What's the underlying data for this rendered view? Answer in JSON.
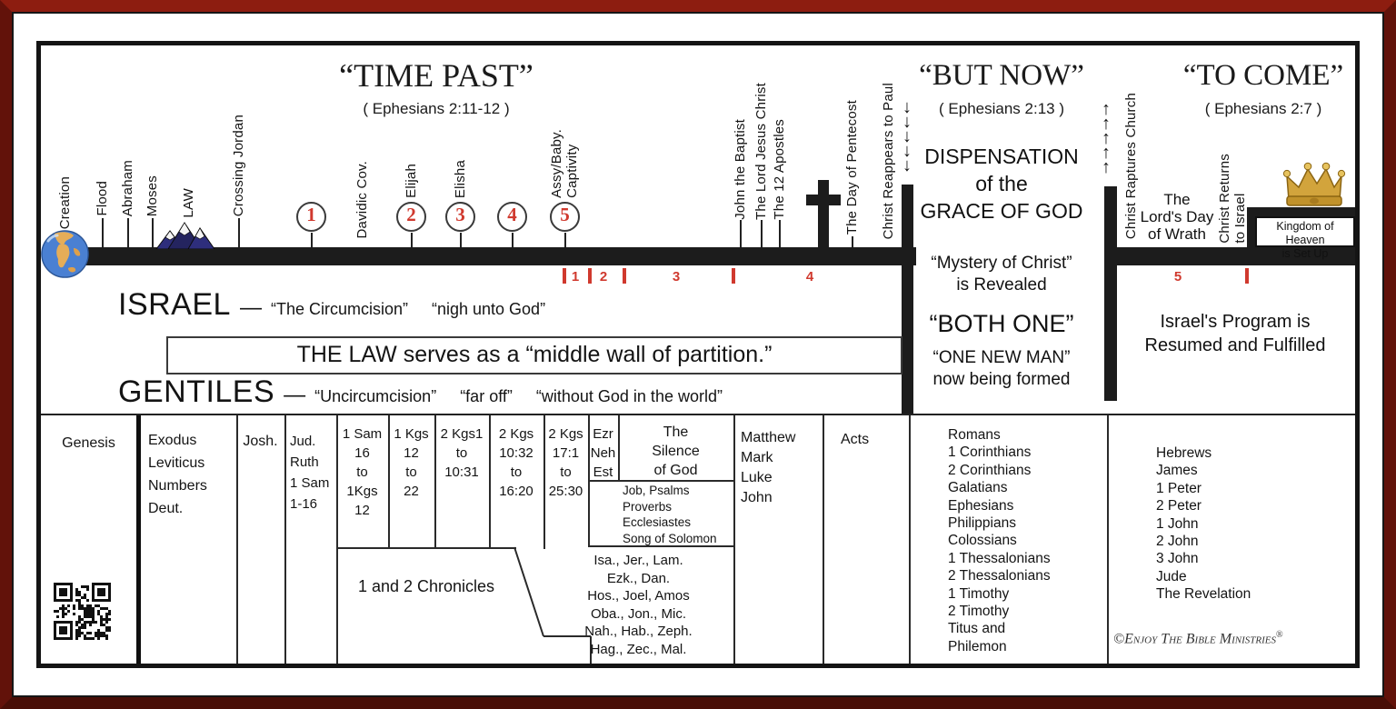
{
  "sections": {
    "time_past": {
      "title": "“TIME PAST”",
      "ref": "( Ephesians 2:11-12 )"
    },
    "but_now": {
      "title": "“BUT NOW”",
      "ref": "( Ephesians 2:13 )",
      "dispensation": [
        "DISPENSATION",
        "of the",
        "GRACE OF GOD"
      ],
      "mystery": [
        "“Mystery of Christ”",
        "is Revealed"
      ],
      "both_one": "“BOTH ONE”",
      "one_new_man": [
        "“ONE NEW MAN”",
        "now being formed"
      ]
    },
    "to_come": {
      "title": "“TO COME”",
      "ref": "( Ephesians 2:7 )",
      "lords_day": [
        "The",
        "Lord's Day",
        "of Wrath"
      ],
      "israels_program": [
        "Israel's Program is",
        "Resumed and Fulfilled"
      ],
      "kingdom": [
        "Kingdom of Heaven",
        "is Set Up"
      ]
    }
  },
  "timeline": {
    "events": [
      "Creation",
      "Flood",
      "Abraham",
      "Moses",
      "LAW",
      "Crossing Jordan",
      "Davidic Cov.",
      "Elijah",
      "Elisha",
      "Assy/Baby.\nCaptivity",
      "John the Baptist",
      "The Lord Jesus Christ",
      "The 12 Apostles",
      "The Day of Pentecost",
      "Christ Reappears to Paul",
      "Christ Raptures Church",
      "Christ Returns\nto Israel"
    ],
    "circled_numbers": [
      "1",
      "2",
      "3",
      "4",
      "5"
    ],
    "period_numbers": [
      "1",
      "2",
      "3",
      "4",
      "5"
    ],
    "down_arrows": [
      "↓",
      "↓",
      "↓",
      "↓",
      "↓"
    ],
    "up_arrows": [
      "↑",
      "↑",
      "↑",
      "↑",
      "↑"
    ],
    "icons": {
      "globe": "earth-globe-icon",
      "mountains": "law-mount-sinai-icon",
      "cross": "cross-icon",
      "crown": "crown-icon",
      "qr": "qr-code"
    },
    "accent_red": "#d0392e",
    "bar_black": "#1c1c1c"
  },
  "middle": {
    "israel": {
      "label": "ISRAEL",
      "dash": "—",
      "phrases": [
        "“The Circumcision”",
        "“nigh unto God”"
      ]
    },
    "law_banner": "THE LAW serves as a “middle wall of partition.”",
    "gentiles": {
      "label": "GENTILES",
      "dash": "—",
      "phrases": [
        "“Uncircumcision”",
        "“far off”",
        "“without God in the world”"
      ]
    }
  },
  "books": {
    "genesis": "Genesis",
    "exodus_group": [
      "Exodus",
      "Leviticus",
      "Numbers",
      "Deut."
    ],
    "joshua": "Josh.",
    "judges_group": [
      "Jud.",
      "Ruth",
      "1 Sam",
      "1-16"
    ],
    "kings_col1": [
      "1 Sam",
      "16",
      "to",
      "1Kgs",
      "12"
    ],
    "kings_col2": [
      "1 Kgs",
      "12",
      "to",
      "22"
    ],
    "kings_col3": [
      "2 Kgs1",
      "to",
      "10:31"
    ],
    "kings_col4": [
      "2 Kgs",
      "10:32",
      "to",
      "16:20"
    ],
    "kings_col5": [
      "2 Kgs",
      "17:1",
      "to",
      "25:30"
    ],
    "ezra_group": [
      "Ezr",
      "Neh",
      "Est"
    ],
    "silence": [
      "The",
      "Silence",
      "of God"
    ],
    "wisdom_group": [
      "Job, Psalms",
      "Proverbs",
      "Ecclesiastes",
      "Song of Solomon"
    ],
    "chronicles": "1 and 2 Chronicles",
    "prophets": [
      "Isa., Jer., Lam.",
      "Ezk., Dan.",
      "Hos., Joel, Amos",
      "Oba., Jon., Mic.",
      "Nah., Hab., Zeph.",
      "Hag., Zec., Mal."
    ],
    "gospels": [
      "Matthew",
      "Mark",
      "Luke",
      "John"
    ],
    "acts": "Acts",
    "pauline": [
      "Romans",
      "1 Corinthians",
      "2 Corinthians",
      "Galatians",
      "Ephesians",
      "Philippians",
      "Colossians",
      "1 Thessalonians",
      "2 Thessalonians",
      "1 Timothy",
      "2 Timothy",
      "Titus and",
      "Philemon"
    ],
    "general": [
      "Hebrews",
      "James",
      "1 Peter",
      "2 Peter",
      "1 John",
      "2 John",
      "3 John",
      "Jude",
      "The Revelation"
    ]
  },
  "footer": {
    "copyright": "©Enjoy The Bible Ministries",
    "reg": "®"
  }
}
